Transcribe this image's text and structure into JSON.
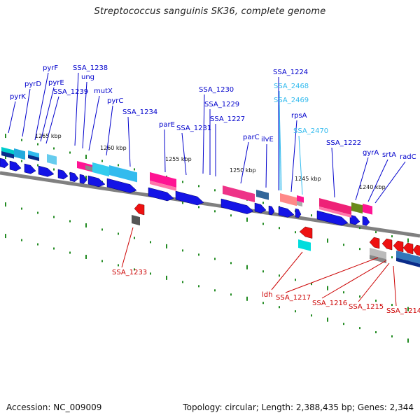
{
  "title": "Streptococcus sanguinis SK36, complete genome",
  "footer": {
    "accession": "Accession: NC_009009",
    "topology": "Topology: circular; Length: 2,388,435 bp; Genes: 2,344"
  },
  "colors": {
    "backbone": "#808080",
    "tick": "#228b22",
    "forward_label": "#0000cc",
    "rna_label": "#33bbee",
    "reverse_label": "#cc0000"
  },
  "scale_labels": [
    "1265 kbp",
    "1260 kbp",
    "1255 kbp",
    "1250 kbp",
    "1245 kbp",
    "1240 kbp"
  ],
  "forward_gene_labels": [
    {
      "name": "pyrK",
      "type": "cds"
    },
    {
      "name": "pyrD",
      "type": "cds"
    },
    {
      "name": "pyrF",
      "type": "cds"
    },
    {
      "name": "pyrE",
      "type": "cds"
    },
    {
      "name": "SSA_1239",
      "type": "cds"
    },
    {
      "name": "SSA_1238",
      "type": "cds"
    },
    {
      "name": "ung",
      "type": "cds"
    },
    {
      "name": "mutX",
      "type": "cds"
    },
    {
      "name": "pyrC",
      "type": "cds"
    },
    {
      "name": "SSA_1234",
      "type": "cds"
    },
    {
      "name": "parE",
      "type": "cds"
    },
    {
      "name": "SSA_1231",
      "type": "cds"
    },
    {
      "name": "SSA_1230",
      "type": "cds"
    },
    {
      "name": "SSA_1229",
      "type": "cds"
    },
    {
      "name": "SSA_1227",
      "type": "cds"
    },
    {
      "name": "parC",
      "type": "cds"
    },
    {
      "name": "ilvE",
      "type": "cds"
    },
    {
      "name": "SSA_1224",
      "type": "cds"
    },
    {
      "name": "SSA_2468",
      "type": "rna"
    },
    {
      "name": "SSA_2469",
      "type": "rna"
    },
    {
      "name": "rpsA",
      "type": "cds"
    },
    {
      "name": "SSA_2470",
      "type": "rna"
    },
    {
      "name": "SSA_1222",
      "type": "cds"
    },
    {
      "name": "gyrA",
      "type": "cds"
    },
    {
      "name": "srtA",
      "type": "cds"
    },
    {
      "name": "radC",
      "type": "cds"
    }
  ],
  "reverse_gene_labels": [
    {
      "name": "SSA_1233"
    },
    {
      "name": "ldh"
    },
    {
      "name": "SSA_1217"
    },
    {
      "name": "SSA_1216"
    },
    {
      "name": "SSA_1215"
    },
    {
      "name": "SSA_1214"
    }
  ]
}
